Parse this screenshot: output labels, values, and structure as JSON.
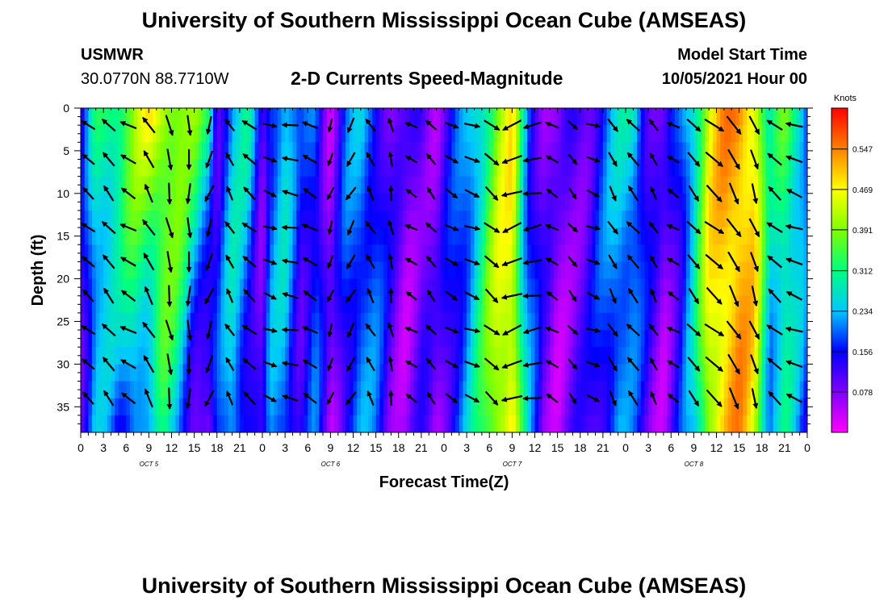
{
  "header": {
    "title_top": "University of Southern Mississippi Ocean Cube (AMSEAS)",
    "title_bottom": "University of Southern Mississippi Ocean Cube (AMSEAS)",
    "station": "USMWR",
    "coords": "30.0770N  88.7710W",
    "plot_title": "2-D Currents Speed-Magnitude",
    "model_start_label": "Model Start Time",
    "model_start_value": "10/05/2021 Hour 00"
  },
  "chart_data": {
    "type": "heatmap",
    "title": "2-D Currents Speed-Magnitude",
    "xlabel": "Forecast Time(Z)",
    "ylabel": "Depth (ft)",
    "ylim": [
      0,
      38
    ],
    "y_ticks": [
      0,
      5,
      10,
      15,
      20,
      25,
      30,
      35
    ],
    "x_hours_total": 96,
    "x_tick_step_hours": 3,
    "x_tick_labels": [
      "0",
      "3",
      "6",
      "9",
      "12",
      "15",
      "18",
      "21",
      "0",
      "3",
      "6",
      "9",
      "12",
      "15",
      "18",
      "21",
      "0",
      "3",
      "6",
      "9",
      "12",
      "15",
      "18",
      "21",
      "0",
      "3",
      "6",
      "9",
      "12",
      "15",
      "18",
      "21",
      "0"
    ],
    "day_labels": [
      {
        "hour": 9,
        "label": "OCT 5"
      },
      {
        "hour": 33,
        "label": "OCT 6"
      },
      {
        "hour": 57,
        "label": "OCT 7"
      },
      {
        "hour": 81,
        "label": "OCT 8"
      }
    ],
    "colorbar": {
      "unit": "Knots",
      "min": 0.0,
      "max": 0.626,
      "ticks": [
        0.078,
        0.156,
        0.234,
        0.312,
        0.391,
        0.469,
        0.547
      ],
      "colors": [
        "#ff00ff",
        "#8000ff",
        "#0000ff",
        "#00c8ff",
        "#00ff80",
        "#80ff00",
        "#ffff00",
        "#ff8000",
        "#ff0000"
      ]
    },
    "speed_profile": {
      "hours": [
        0,
        2,
        4,
        5,
        7,
        9,
        11,
        13,
        15,
        17,
        18,
        20,
        22,
        24,
        25,
        27,
        29,
        31,
        33,
        35,
        37,
        39,
        41,
        43,
        45,
        47,
        49,
        51,
        53,
        55,
        57,
        59,
        61,
        63,
        65,
        67,
        69,
        71,
        73,
        75,
        77,
        79,
        81,
        83,
        85,
        87,
        89,
        91,
        93,
        95,
        96
      ],
      "speed_top": [
        0.1,
        0.3,
        0.34,
        0.36,
        0.4,
        0.46,
        0.44,
        0.42,
        0.38,
        0.3,
        0.12,
        0.24,
        0.28,
        0.1,
        0.2,
        0.26,
        0.14,
        0.2,
        0.06,
        0.18,
        0.22,
        0.18,
        0.1,
        0.07,
        0.12,
        0.08,
        0.14,
        0.2,
        0.3,
        0.4,
        0.46,
        0.2,
        0.1,
        0.06,
        0.1,
        0.12,
        0.18,
        0.24,
        0.28,
        0.14,
        0.08,
        0.16,
        0.3,
        0.46,
        0.52,
        0.54,
        0.5,
        0.26,
        0.36,
        0.3,
        0.22
      ],
      "speed_bottom": [
        0.12,
        0.22,
        0.18,
        0.16,
        0.24,
        0.18,
        0.3,
        0.24,
        0.08,
        0.04,
        0.16,
        0.26,
        0.14,
        0.08,
        0.2,
        0.22,
        0.12,
        0.18,
        0.05,
        0.16,
        0.2,
        0.18,
        0.1,
        0.06,
        0.1,
        0.07,
        0.16,
        0.22,
        0.32,
        0.44,
        0.48,
        0.22,
        0.1,
        0.06,
        0.09,
        0.1,
        0.16,
        0.22,
        0.16,
        0.1,
        0.06,
        0.14,
        0.22,
        0.44,
        0.5,
        0.52,
        0.46,
        0.22,
        0.28,
        0.18,
        0.14
      ]
    },
    "vector_stations_hours": [
      1,
      3.7,
      6.3,
      9,
      11.7,
      14.3,
      17,
      19.7,
      22.3,
      25,
      27.7,
      30.3,
      33,
      35.7,
      38.3,
      41,
      43.7,
      46.3,
      49,
      51.7,
      54.3,
      57,
      59.7,
      62.3,
      65,
      67.7,
      70.3,
      73,
      75.7,
      78.3,
      81,
      83.7,
      86.3,
      89,
      91.7,
      94.3
    ],
    "vector_depths_ft": [
      2,
      6,
      10,
      14,
      18,
      22,
      26,
      30,
      34
    ],
    "vector_direction_deg": [
      310,
      320,
      300,
      330,
      170,
      180,
      200,
      330,
      310,
      110,
      280,
      300,
      200,
      210,
      330,
      350,
      300,
      320,
      120,
      110,
      130,
      250,
      260,
      300,
      140,
      110,
      150,
      320,
      330,
      300,
      140,
      130,
      150,
      160,
      310,
      290
    ],
    "vector_speed_knots": [
      0.2,
      0.28,
      0.26,
      0.36,
      0.44,
      0.4,
      0.3,
      0.16,
      0.24,
      0.12,
      0.22,
      0.22,
      0.1,
      0.2,
      0.18,
      0.16,
      0.08,
      0.12,
      0.14,
      0.2,
      0.3,
      0.42,
      0.32,
      0.12,
      0.08,
      0.12,
      0.2,
      0.26,
      0.12,
      0.1,
      0.3,
      0.48,
      0.5,
      0.4,
      0.3,
      0.26
    ]
  }
}
